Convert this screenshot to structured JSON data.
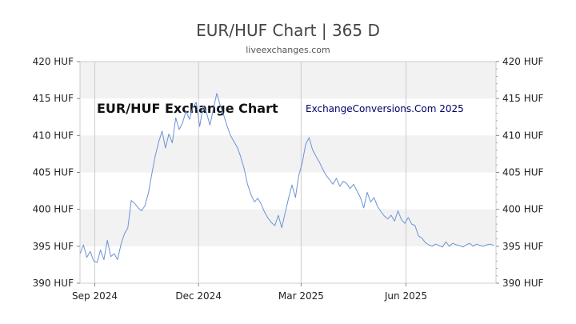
{
  "title": "EUR/HUF Chart | 365 D",
  "subtitle": "liveexchanges.com",
  "watermarks": {
    "left": "EUR/HUF Exchange Chart",
    "right": "ExchangeConversions.Com 2025"
  },
  "colors": {
    "line": "#6b93d6",
    "band": "#f2f2f2",
    "grid": "#cccccc",
    "axis_text": "#222222",
    "watermark_left": "#111111",
    "watermark_right": "#000066"
  },
  "chart_data": {
    "type": "line",
    "grid": true,
    "ylim": [
      390,
      420
    ],
    "yticks": [
      390,
      395,
      400,
      405,
      410,
      415,
      420
    ],
    "ytick_labels": [
      "390 HUF",
      "395 HUF",
      "400 HUF",
      "405 HUF",
      "410 HUF",
      "415 HUF",
      "420 HUF"
    ],
    "xlim": [
      0,
      365
    ],
    "xticks": [
      {
        "label": "Sep 2024",
        "x": 13
      },
      {
        "label": "Dec 2024",
        "x": 104
      },
      {
        "label": "Mar 2025",
        "x": 194
      },
      {
        "label": "Jun 2025",
        "x": 286
      }
    ],
    "series": [
      {
        "x": [
          0,
          3,
          6,
          9,
          12,
          15,
          18,
          21,
          24,
          27,
          30,
          33,
          36,
          39,
          42,
          45,
          48,
          51,
          54,
          57,
          60,
          63,
          66,
          69,
          72,
          75,
          78,
          81,
          84,
          87,
          90,
          93,
          96,
          99,
          102,
          105,
          108,
          111,
          114,
          117,
          120,
          123,
          126,
          129,
          132,
          135,
          138,
          141,
          144,
          147,
          150,
          153,
          156,
          159,
          162,
          165,
          168,
          171,
          174,
          177,
          180,
          183,
          186,
          189,
          192,
          195,
          198,
          201,
          204,
          207,
          210,
          213,
          216,
          219,
          222,
          225,
          228,
          231,
          234,
          237,
          240,
          243,
          246,
          249,
          252,
          255,
          258,
          261,
          264,
          267,
          270,
          273,
          276,
          279,
          282,
          285,
          288,
          291,
          294,
          297,
          300,
          303,
          306,
          309,
          312,
          315,
          318,
          321,
          324,
          327,
          330,
          333,
          336,
          339,
          342,
          345,
          348,
          351,
          354,
          357,
          360,
          363
        ],
        "y": [
          394.0,
          395.2,
          393.5,
          394.3,
          393.0,
          392.8,
          394.5,
          393.2,
          395.8,
          393.6,
          394.0,
          393.2,
          395.3,
          396.7,
          397.5,
          401.2,
          400.8,
          400.2,
          399.8,
          400.5,
          402.2,
          404.8,
          407.2,
          409.1,
          410.6,
          408.3,
          410.2,
          409.0,
          412.4,
          410.8,
          411.7,
          413.3,
          412.2,
          413.8,
          414.5,
          411.2,
          414.0,
          413.1,
          411.4,
          413.6,
          415.7,
          414.1,
          412.8,
          411.3,
          410.0,
          409.2,
          408.4,
          407.1,
          405.5,
          403.4,
          402.0,
          401.0,
          401.5,
          400.7,
          399.6,
          398.8,
          398.2,
          397.8,
          399.2,
          397.5,
          399.5,
          401.5,
          403.3,
          401.6,
          404.6,
          406.3,
          408.8,
          409.7,
          408.1,
          407.2,
          406.4,
          405.4,
          404.6,
          404.0,
          403.4,
          404.2,
          403.1,
          403.8,
          403.5,
          402.8,
          403.4,
          402.5,
          401.6,
          400.2,
          402.3,
          401.0,
          401.6,
          400.4,
          399.7,
          399.1,
          398.7,
          399.2,
          398.4,
          399.8,
          398.6,
          398.1,
          398.9,
          398.0,
          397.8,
          396.4,
          396.1,
          395.5,
          395.2,
          395.0,
          395.3,
          395.1,
          394.9,
          395.6,
          395.0,
          395.4,
          395.2,
          395.1,
          394.9,
          395.2,
          395.4,
          395.0,
          395.3,
          395.1,
          395.0,
          395.2,
          395.3,
          395.1
        ],
        "note_hidden": "",
        "values_source": "read off chart"
      }
    ]
  }
}
